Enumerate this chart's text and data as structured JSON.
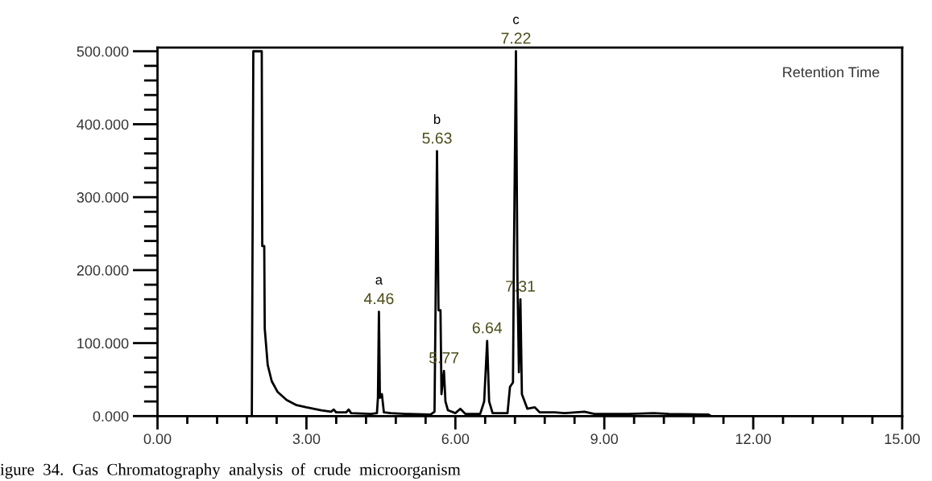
{
  "chart_data": {
    "type": "line",
    "x": [
      1.9,
      1.93,
      2.1,
      2.11,
      2.15,
      2.16,
      2.22,
      2.3,
      2.42,
      2.6,
      2.8,
      3.0,
      3.3,
      3.5,
      3.55,
      3.6,
      3.8,
      3.85,
      3.9,
      4.3,
      4.42,
      4.44,
      4.46,
      4.48,
      4.52,
      4.56,
      4.7,
      5.0,
      5.5,
      5.58,
      5.6,
      5.63,
      5.66,
      5.7,
      5.72,
      5.77,
      5.8,
      5.85,
      6.0,
      6.1,
      6.2,
      6.5,
      6.58,
      6.64,
      6.68,
      6.75,
      7.05,
      7.1,
      7.16,
      7.18,
      7.22,
      7.25,
      7.28,
      7.31,
      7.34,
      7.45,
      7.6,
      7.7,
      8.0,
      8.2,
      8.6,
      8.8,
      9.5,
      10.0,
      10.3,
      11.1,
      11.15
    ],
    "series": [
      {
        "color": "#000000",
        "values": [
          0,
          500,
          500,
          233,
          233,
          120,
          70,
          48,
          33,
          22,
          15,
          12,
          8,
          6,
          9,
          5,
          5,
          9,
          4,
          3,
          4,
          25,
          143,
          25,
          30,
          5,
          4,
          3,
          2,
          6,
          145,
          363,
          145,
          145,
          30,
          62,
          20,
          8,
          4,
          10,
          3,
          3,
          20,
          103,
          20,
          4,
          4,
          40,
          46,
          225,
          500,
          190,
          60,
          160,
          30,
          10,
          12,
          5,
          5,
          4,
          6,
          3,
          3,
          4,
          3,
          2,
          0
        ]
      }
    ],
    "xlim": [
      0,
      15
    ],
    "ylim": [
      0,
      505
    ],
    "xticks": [
      {
        "value": 0,
        "label": "0.00"
      },
      {
        "value": 3,
        "label": "3.00"
      },
      {
        "value": 6,
        "label": "6.00"
      },
      {
        "value": 9,
        "label": "9.00"
      },
      {
        "value": 12,
        "label": "12.00"
      },
      {
        "value": 15,
        "label": "15.00"
      }
    ],
    "yticks": [
      {
        "value": 0,
        "label": "0.000"
      },
      {
        "value": 100,
        "label": "100.000"
      },
      {
        "value": 200,
        "label": "200.000"
      },
      {
        "value": 300,
        "label": "300.000"
      },
      {
        "value": 400,
        "label": "400.000"
      },
      {
        "value": 500,
        "label": "500.000"
      }
    ],
    "annotations": [
      {
        "text": "4.46",
        "x": 4.46,
        "y": 143
      },
      {
        "text": "a",
        "x": 4.46,
        "y": 143
      },
      {
        "text": "5.63",
        "x": 5.63,
        "y": 363
      },
      {
        "text": "b",
        "x": 5.63,
        "y": 363
      },
      {
        "text": "5.77",
        "x": 5.77,
        "y": 62
      },
      {
        "text": "6.64",
        "x": 6.64,
        "y": 103
      },
      {
        "text": "7.22",
        "x": 7.22,
        "y": 500
      },
      {
        "text": "c",
        "x": 7.22,
        "y": 500
      },
      {
        "text": "7.31",
        "x": 7.31,
        "y": 160
      },
      "Retention Time",
      "igure  34.  Gas  Chromatography  analysis  of  crude  microorganism"
    ],
    "grid": false,
    "legend": false,
    "marker": "none",
    "line_style": "solid"
  }
}
